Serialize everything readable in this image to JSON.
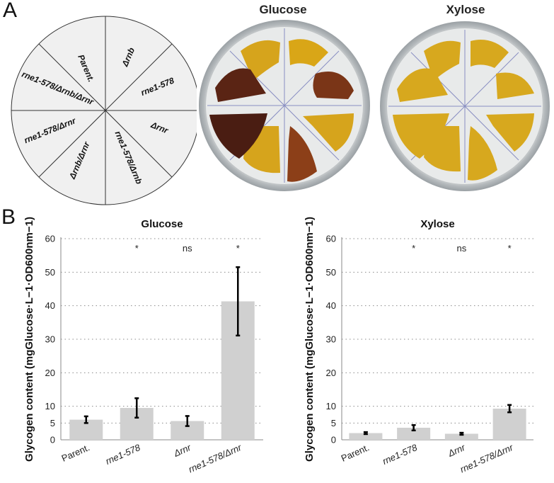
{
  "panel_a": {
    "letter": "A",
    "wheel_labels": [
      "Parent.",
      "Δrnb",
      "rne1-578",
      "Δrnr",
      "rne1-578/Δrnb",
      "Δrnb/Δrnr",
      "rne1-578/Δrnr",
      "rne1-578/Δrnb/Δrnr"
    ],
    "plates": [
      {
        "title": "Glucose"
      },
      {
        "title": "Xylose"
      }
    ]
  },
  "panel_b": {
    "letter": "B"
  },
  "chart_data": [
    {
      "type": "bar",
      "title": "Glucose",
      "ylabel": "Glycogen content (mgGlucose·L−1·OD600nm−1)",
      "categories": [
        "Parent.",
        "rne1-578",
        "Δrnr",
        "rne1-578/Δrnr"
      ],
      "values": [
        6.0,
        9.5,
        5.6,
        41.3
      ],
      "errors": [
        1.0,
        2.9,
        1.5,
        10.2
      ],
      "significance": [
        "",
        "*",
        "ns",
        "*"
      ],
      "ylim": [
        0,
        60
      ],
      "yticks": [
        0,
        5,
        10,
        20,
        30,
        40,
        50,
        60
      ],
      "grid": true,
      "bar_color": "#d0d0d0"
    },
    {
      "type": "bar",
      "title": "Xylose",
      "ylabel": "Glycogen content (mgGlucose·L−1·OD600nm−1)",
      "categories": [
        "Parent.",
        "rne1-578",
        "Δrnr",
        "rne1-578/Δrnr"
      ],
      "values": [
        2.0,
        3.6,
        1.8,
        9.3
      ],
      "errors": [
        0.3,
        0.8,
        0.3,
        1.1
      ],
      "significance": [
        "",
        "*",
        "ns",
        "*"
      ],
      "ylim": [
        0,
        60
      ],
      "yticks": [
        0,
        5,
        10,
        20,
        30,
        40,
        50,
        60
      ],
      "grid": true,
      "bar_color": "#d0d0d0"
    }
  ]
}
